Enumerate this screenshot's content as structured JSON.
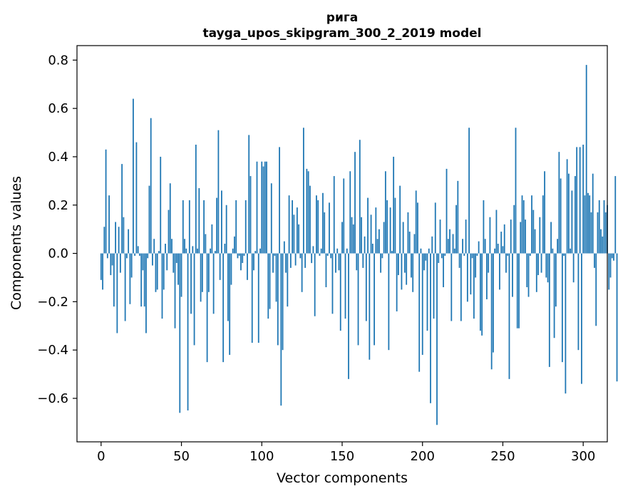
{
  "chart_data": {
    "type": "bar",
    "title_line1": "рига",
    "title_line2": "tayga_upos_skipgram_300_2_2019 model",
    "xlabel": "Vector components",
    "ylabel": "Components values",
    "xlim": [
      -15,
      315
    ],
    "ylim": [
      -0.78,
      0.86
    ],
    "xticks": [
      0,
      50,
      100,
      150,
      200,
      250,
      300
    ],
    "yticks": [
      -0.6,
      -0.4,
      -0.2,
      0.0,
      0.2,
      0.4,
      0.6,
      0.8
    ],
    "ytick_labels": [
      "−0.6",
      "−0.4",
      "−0.2",
      "0.0",
      "0.2",
      "0.4",
      "0.6",
      "0.8"
    ],
    "bar_color": "#1f77b4",
    "grid": false,
    "values": [
      -0.11,
      -0.15,
      0.11,
      0.43,
      -0.02,
      0.24,
      -0.09,
      -0.05,
      -0.22,
      0.13,
      -0.33,
      0.11,
      -0.08,
      0.37,
      0.15,
      -0.28,
      -0.02,
      0.1,
      -0.21,
      -0.1,
      0.64,
      -0.01,
      0.46,
      0.03,
      -0.01,
      -0.22,
      -0.07,
      -0.22,
      -0.33,
      -0.02,
      0.28,
      0.56,
      -0.05,
      0.06,
      -0.16,
      -0.15,
      0.01,
      0.4,
      -0.27,
      -0.15,
      0.04,
      -0.07,
      0.18,
      0.29,
      0.06,
      -0.08,
      -0.31,
      -0.04,
      -0.13,
      -0.66,
      -0.18,
      0.22,
      0.06,
      0.02,
      -0.65,
      0.22,
      -0.25,
      0.03,
      -0.38,
      0.45,
      0.02,
      0.27,
      -0.2,
      -0.16,
      0.22,
      0.08,
      -0.45,
      -0.16,
      0.02,
      0.12,
      -0.25,
      0.01,
      0.23,
      0.51,
      -0.11,
      0.26,
      -0.45,
      0.04,
      0.2,
      -0.28,
      -0.42,
      -0.13,
      0.02,
      0.07,
      0.22,
      -0.02,
      -0.01,
      -0.07,
      -0.04,
      -0.01,
      0.22,
      -0.11,
      0.49,
      0.32,
      -0.37,
      -0.07,
      0.01,
      0.38,
      -0.37,
      0.02,
      0.38,
      0.36,
      0.38,
      0.38,
      -0.27,
      -0.23,
      0.29,
      -0.08,
      -0.01,
      -0.2,
      -0.38,
      0.44,
      -0.63,
      -0.4,
      0.05,
      -0.08,
      -0.22,
      0.24,
      -0.06,
      0.22,
      0.16,
      -0.05,
      0.19,
      0.12,
      -0.02,
      -0.16,
      0.52,
      -0.06,
      0.35,
      0.34,
      0.28,
      -0.04,
      0.03,
      -0.26,
      0.24,
      0.22,
      -0.01,
      0.02,
      0.25,
      0.17,
      -0.14,
      -0.01,
      0.21,
      -0.02,
      -0.25,
      0.32,
      -0.08,
      0.02,
      -0.07,
      -0.32,
      0.13,
      0.31,
      -0.27,
      0.02,
      -0.52,
      0.34,
      0.15,
      0.12,
      0.42,
      -0.07,
      -0.38,
      0.47,
      0.15,
      -0.06,
      0.07,
      -0.28,
      0.23,
      -0.44,
      0.16,
      0.04,
      -0.38,
      0.19,
      0.06,
      0.1,
      -0.08,
      -0.02,
      0.13,
      0.34,
      0.22,
      -0.4,
      0.19,
      0.01,
      0.4,
      0.23,
      -0.24,
      -0.09,
      0.28,
      -0.15,
      0.13,
      -0.08,
      -0.13,
      0.17,
      0.09,
      -0.1,
      -0.16,
      0.08,
      0.26,
      0.21,
      -0.49,
      0.02,
      -0.42,
      -0.07,
      -0.03,
      -0.32,
      0.02,
      -0.62,
      0.07,
      -0.27,
      0.21,
      -0.71,
      -0.04,
      0.14,
      -0.02,
      -0.14,
      -0.01,
      0.35,
      0.06,
      0.1,
      -0.28,
      0.08,
      0.02,
      0.2,
      0.3,
      -0.06,
      -0.28,
      0.06,
      -0.01,
      0.14,
      -0.2,
      0.52,
      -0.17,
      -0.02,
      -0.27,
      -0.1,
      -0.01,
      0.05,
      -0.32,
      -0.34,
      0.22,
      0.06,
      -0.19,
      -0.08,
      0.15,
      -0.48,
      -0.41,
      0.02,
      0.18,
      0.04,
      -0.15,
      0.09,
      0.03,
      0.12,
      -0.08,
      -0.01,
      -0.52,
      0.14,
      -0.18,
      0.2,
      0.52,
      -0.31,
      -0.31,
      0.13,
      0.24,
      0.22,
      0.14,
      -0.14,
      -0.18,
      -0.01,
      0.24,
      0.18,
      0.1,
      -0.16,
      -0.09,
      0.15,
      -0.08,
      0.24,
      0.34,
      -0.1,
      -0.12,
      -0.47,
      0.13,
      0.02,
      -0.35,
      -0.22,
      0.06,
      0.42,
      0.31,
      -0.45,
      -0.01,
      -0.58,
      0.39,
      0.33,
      0.02,
      0.26,
      -0.12,
      0.32,
      0.44,
      -0.4,
      0.44,
      -0.54,
      0.45,
      0.24,
      0.78,
      0.25,
      0.24,
      0.17,
      0.33,
      -0.06,
      -0.3,
      0.17,
      0.22,
      0.1,
      0.07,
      0.22,
      0.17,
      0.2,
      -0.15,
      -0.1,
      -0.02,
      -0.03,
      0.32,
      -0.53
    ]
  }
}
